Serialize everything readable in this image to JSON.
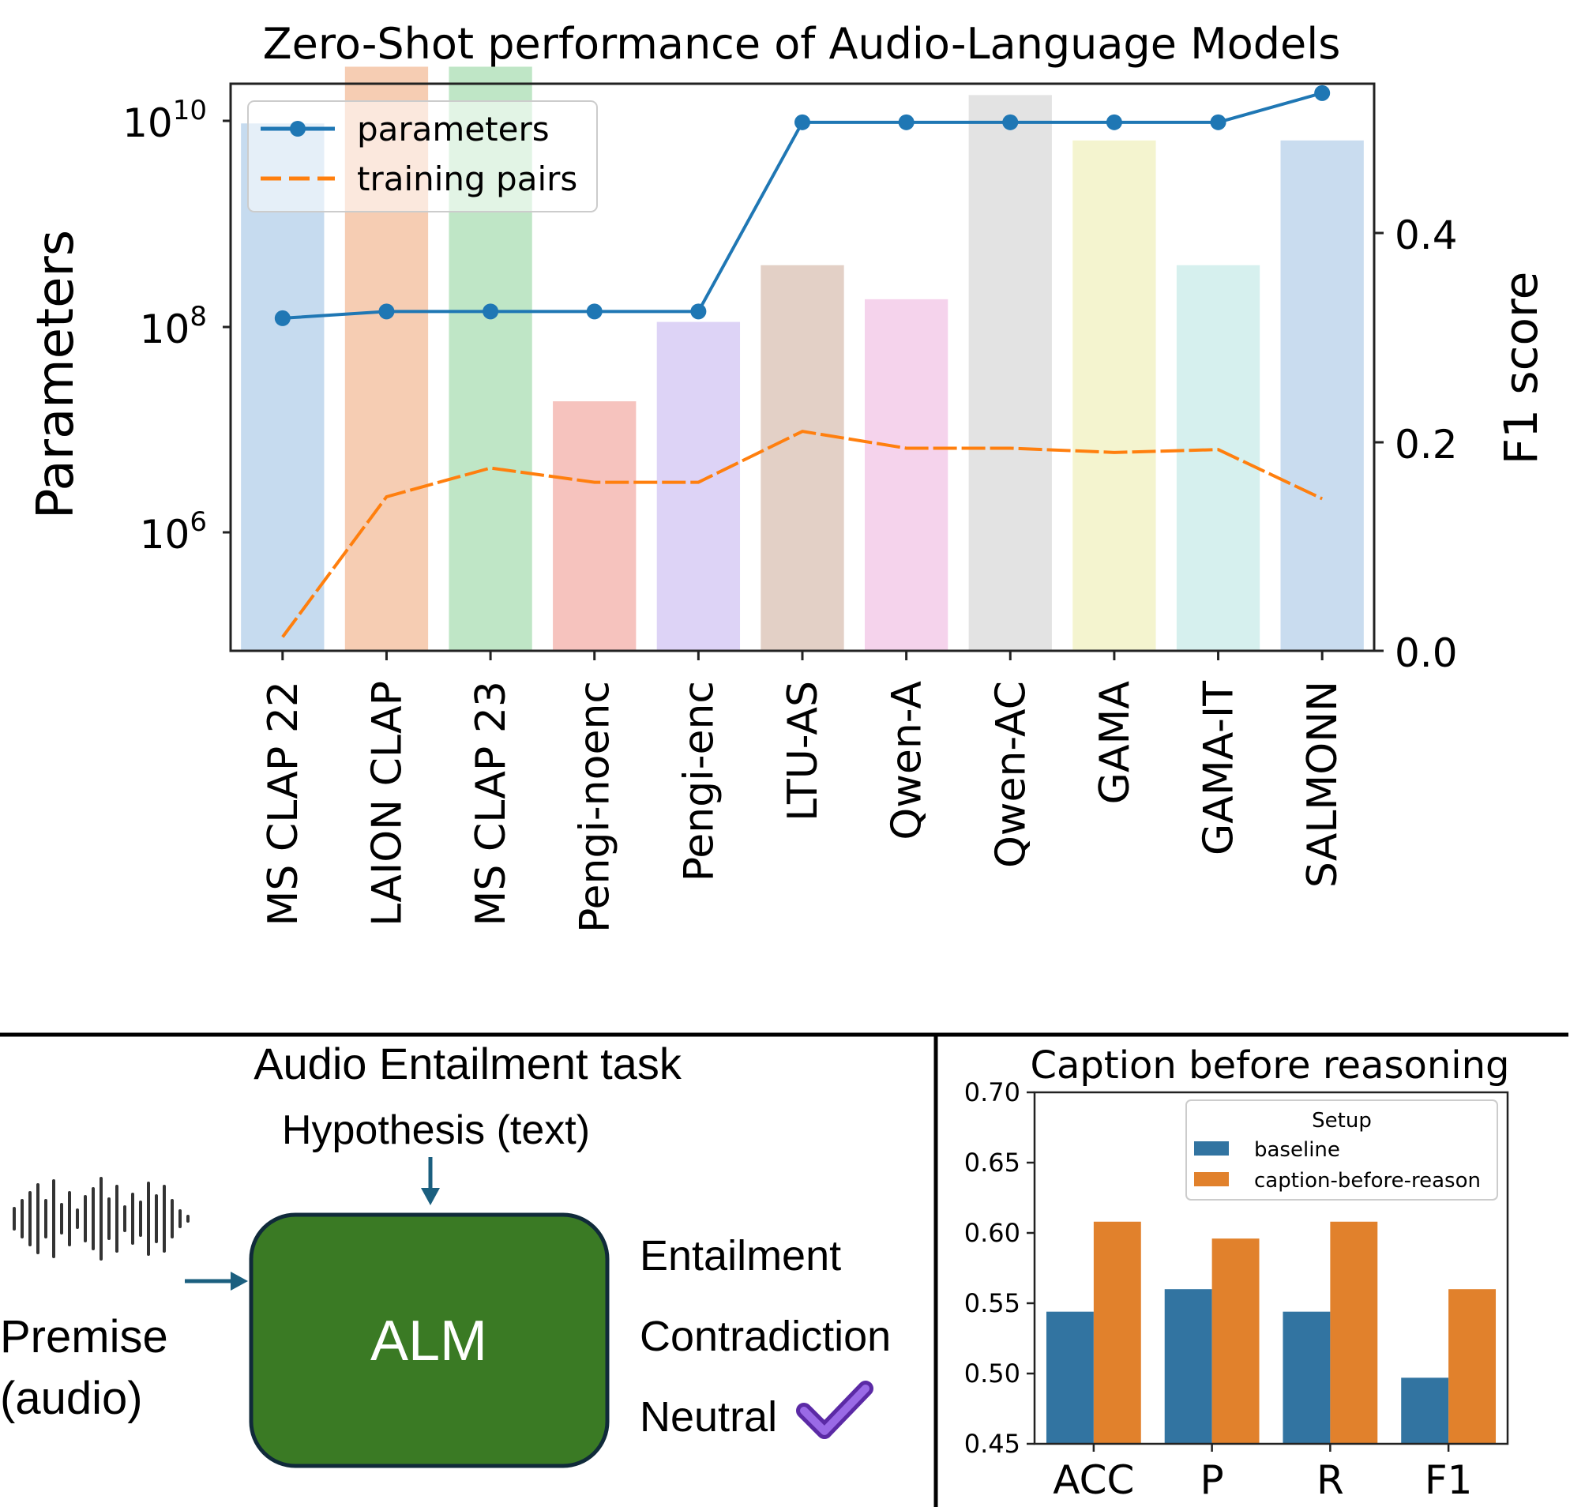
{
  "top_chart": {
    "title": "Zero-Shot performance of Audio-Language Models",
    "left_axis_label": "Parameters",
    "right_axis_label": "F1 score",
    "left_ticks": [
      {
        "base": "10",
        "exp": "6"
      },
      {
        "base": "10",
        "exp": "8"
      },
      {
        "base": "10",
        "exp": "10"
      }
    ],
    "right_ticks": [
      "0.0",
      "0.2",
      "0.4"
    ],
    "legend": [
      "parameters",
      "training pairs"
    ]
  },
  "bottom_left": {
    "title": "Audio Entailment task",
    "hypothesis_label": "Hypothesis (text)",
    "premise_line1": "Premise",
    "premise_line2": "(audio)",
    "model_label": "ALM",
    "outputs": [
      "Entailment",
      "Contradiction",
      "Neutral"
    ]
  },
  "bottom_chart": {
    "title": "Caption before reasoning",
    "legend_title": "Setup",
    "y_ticks": [
      "0.45",
      "0.50",
      "0.55",
      "0.60",
      "0.65",
      "0.70"
    ]
  },
  "chart_data": [
    {
      "type": "bar",
      "title": "Zero-Shot performance of Audio-Language Models",
      "categories": [
        "MS CLAP 22",
        "LAION CLAP",
        "MS CLAP 23",
        "Pengi-noenc",
        "Pengi-enc",
        "LTU-AS",
        "Qwen-A",
        "Qwen-AC",
        "GAMA",
        "GAMA-IT",
        "SALMONN"
      ],
      "bar_colors": [
        "#c6dbef",
        "#f6cdb3",
        "#bfe6c6",
        "#f6c3be",
        "#ddd3f6",
        "#e3d0c6",
        "#f5d3ec",
        "#e3e3e3",
        "#f4f4cf",
        "#d6f0ee",
        "#c9dcef"
      ],
      "f1_score": [
        0.465,
        0.515,
        0.515,
        0.22,
        0.29,
        0.34,
        0.31,
        0.49,
        0.45,
        0.34,
        0.45
      ],
      "series": [
        {
          "name": "parameters",
          "axis": "left",
          "scale": "log",
          "color": "#1f77b4",
          "style": "solid-marker",
          "values": [
            110000000,
            127000000,
            127000000,
            127000000,
            127000000,
            7000000000,
            7000000000,
            7000000000,
            7000000000,
            7000000000,
            13000000000
          ]
        },
        {
          "name": "training pairs",
          "axis": "left",
          "scale": "log",
          "color": "#ff7f0e",
          "style": "dashed",
          "values": [
            128000,
            2500000,
            4600000,
            3400000,
            3400000,
            10000000,
            7000000,
            7000000,
            6400000,
            6800000,
            2400000
          ]
        }
      ],
      "ylabel": "Parameters",
      "y2label": "F1 score",
      "ylim_log10": [
        4.98,
        10.2
      ],
      "y2lim": [
        0.0,
        0.5
      ],
      "legend_position": "upper-left"
    },
    {
      "type": "bar",
      "title": "Caption before reasoning",
      "categories": [
        "ACC",
        "P",
        "R",
        "F1"
      ],
      "series": [
        {
          "name": "baseline",
          "color": "#3274a1",
          "values": [
            0.544,
            0.56,
            0.544,
            0.497
          ]
        },
        {
          "name": "caption-before-reason",
          "color": "#e1812c",
          "values": [
            0.608,
            0.596,
            0.608,
            0.56
          ]
        }
      ],
      "ylim": [
        0.45,
        0.7
      ],
      "legend_title": "Setup",
      "legend_position": "upper-right"
    }
  ]
}
